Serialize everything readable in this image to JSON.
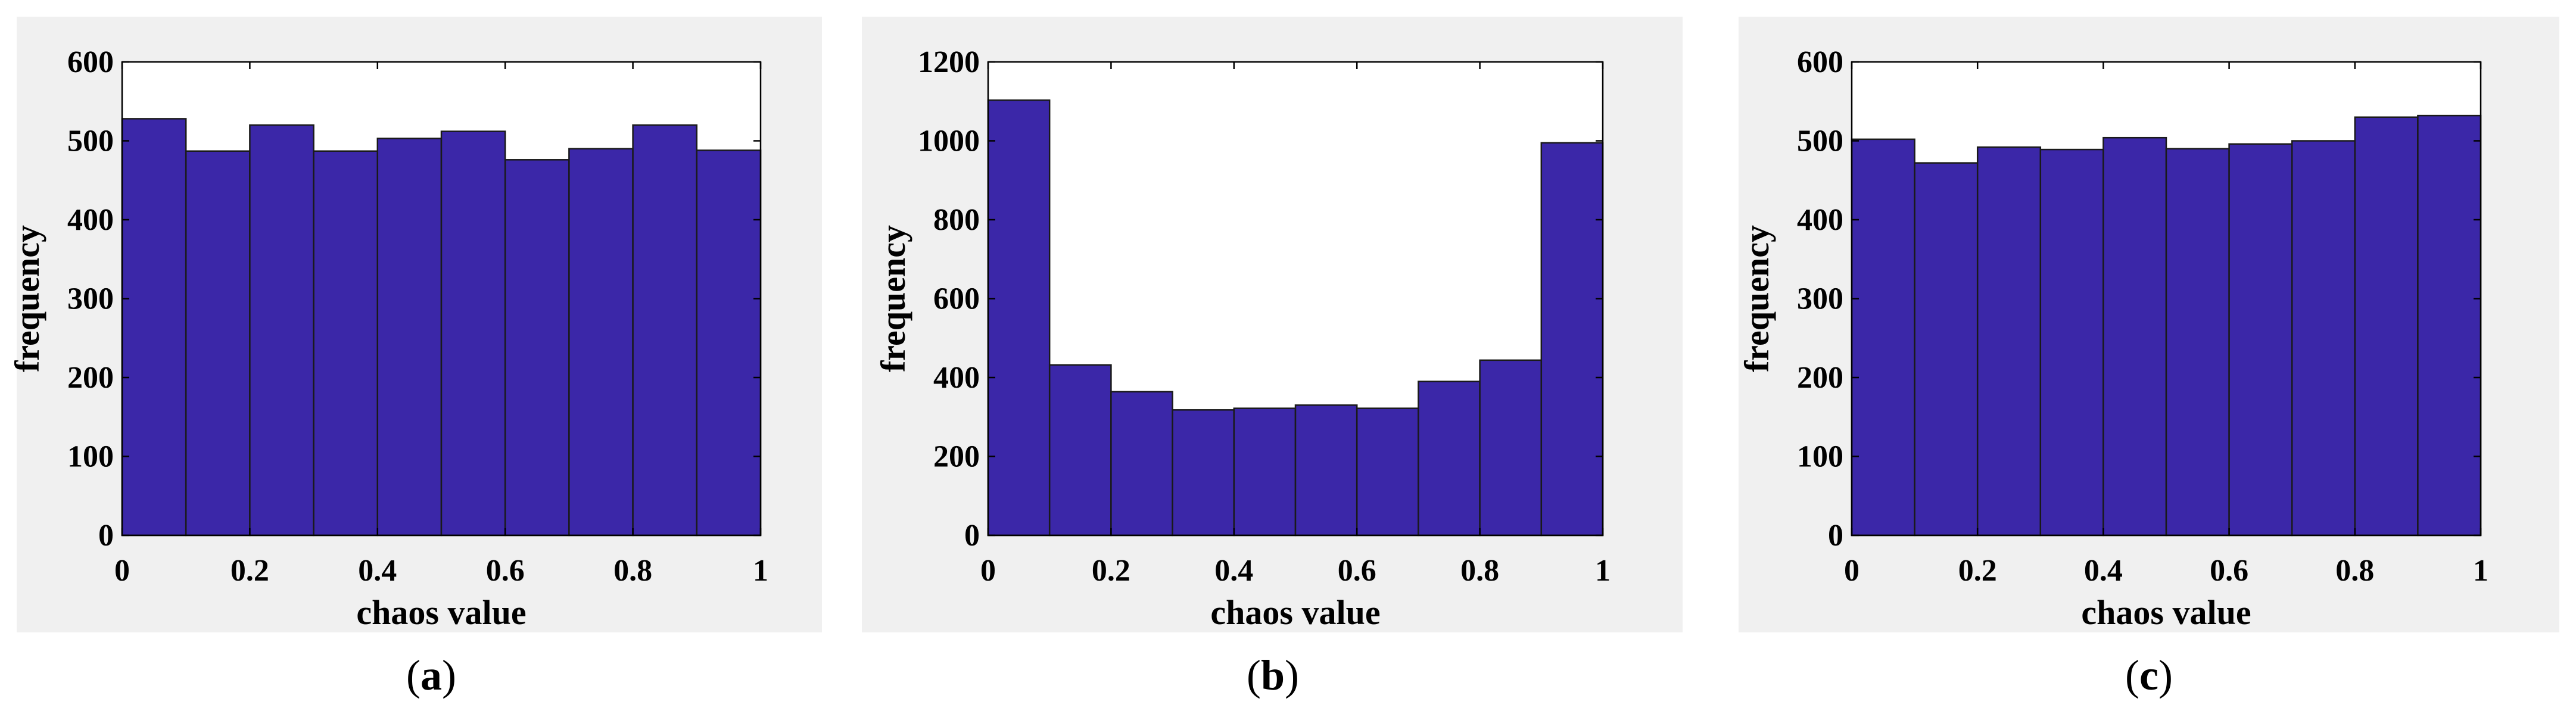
{
  "colors": {
    "bar_fill": "#3b27a8",
    "bar_edge": "#1a1a1a",
    "panel_background": "#f0f0f0",
    "axes_background": "#ffffff"
  },
  "chart_data": [
    {
      "type": "bar",
      "subtype": "histogram",
      "caption_letter": "a",
      "caption": "(a)",
      "xlabel": "chaos value",
      "ylabel": "frequency",
      "xlim": [
        0,
        1
      ],
      "ylim": [
        0,
        600
      ],
      "xticks": [
        0,
        0.2,
        0.4,
        0.6,
        0.8,
        1
      ],
      "xtick_labels": [
        "0",
        "0.2",
        "0.4",
        "0.6",
        "0.8",
        "1"
      ],
      "yticks": [
        0,
        100,
        200,
        300,
        400,
        500,
        600
      ],
      "ytick_labels": [
        "0",
        "100",
        "200",
        "300",
        "400",
        "500",
        "600"
      ],
      "bin_edges": [
        0,
        0.1,
        0.2,
        0.3,
        0.4,
        0.5,
        0.6,
        0.7,
        0.8,
        0.9,
        1
      ],
      "values": [
        528,
        487,
        520,
        487,
        503,
        512,
        476,
        490,
        520,
        488
      ],
      "grid": false
    },
    {
      "type": "bar",
      "subtype": "histogram",
      "caption_letter": "b",
      "caption": "(b)",
      "xlabel": "chaos value",
      "ylabel": "frequency",
      "xlim": [
        0,
        1
      ],
      "ylim": [
        0,
        1200
      ],
      "xticks": [
        0,
        0.2,
        0.4,
        0.6,
        0.8,
        1
      ],
      "xtick_labels": [
        "0",
        "0.2",
        "0.4",
        "0.6",
        "0.8",
        "1"
      ],
      "yticks": [
        0,
        200,
        400,
        600,
        800,
        1000,
        1200
      ],
      "ytick_labels": [
        "0",
        "200",
        "400",
        "600",
        "800",
        "1000",
        "1200"
      ],
      "bin_edges": [
        0,
        0.1,
        0.2,
        0.3,
        0.4,
        0.5,
        0.6,
        0.7,
        0.8,
        0.9,
        1
      ],
      "values": [
        1103,
        432,
        364,
        318,
        322,
        330,
        322,
        390,
        444,
        995
      ],
      "grid": false
    },
    {
      "type": "bar",
      "subtype": "histogram",
      "caption_letter": "c",
      "caption": "(c)",
      "xlabel": "chaos value",
      "ylabel": "frequency",
      "xlim": [
        0,
        1
      ],
      "ylim": [
        0,
        600
      ],
      "xticks": [
        0,
        0.2,
        0.4,
        0.6,
        0.8,
        1
      ],
      "xtick_labels": [
        "0",
        "0.2",
        "0.4",
        "0.6",
        "0.8",
        "1"
      ],
      "yticks": [
        0,
        100,
        200,
        300,
        400,
        500,
        600
      ],
      "ytick_labels": [
        "0",
        "100",
        "200",
        "300",
        "400",
        "500",
        "600"
      ],
      "bin_edges": [
        0,
        0.1,
        0.2,
        0.3,
        0.4,
        0.5,
        0.6,
        0.7,
        0.8,
        0.9,
        1
      ],
      "values": [
        502,
        472,
        492,
        489,
        504,
        490,
        496,
        500,
        530,
        532
      ],
      "grid": false
    }
  ]
}
